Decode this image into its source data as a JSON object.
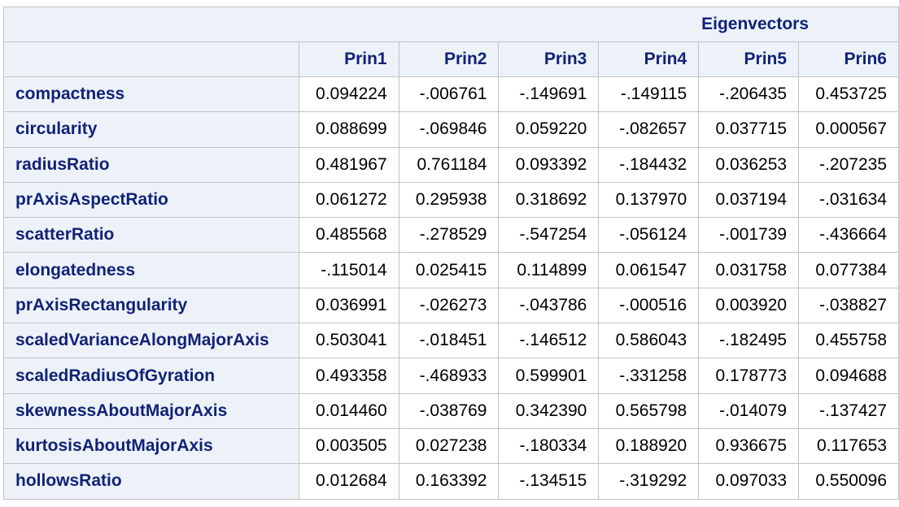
{
  "table": {
    "spanning_header": "Eigenvectors",
    "columns": [
      "Prin1",
      "Prin2",
      "Prin3",
      "Prin4",
      "Prin5",
      "Prin6"
    ],
    "rows": [
      {
        "label": "compactness",
        "values": [
          "0.094224",
          "-.006761",
          "-.149691",
          "-.149115",
          "-.206435",
          "0.453725"
        ]
      },
      {
        "label": "circularity",
        "values": [
          "0.088699",
          "-.069846",
          "0.059220",
          "-.082657",
          "0.037715",
          "0.000567"
        ]
      },
      {
        "label": "radiusRatio",
        "values": [
          "0.481967",
          "0.761184",
          "0.093392",
          "-.184432",
          "0.036253",
          "-.207235"
        ]
      },
      {
        "label": "prAxisAspectRatio",
        "values": [
          "0.061272",
          "0.295938",
          "0.318692",
          "0.137970",
          "0.037194",
          "-.031634"
        ]
      },
      {
        "label": "scatterRatio",
        "values": [
          "0.485568",
          "-.278529",
          "-.547254",
          "-.056124",
          "-.001739",
          "-.436664"
        ]
      },
      {
        "label": "elongatedness",
        "values": [
          "-.115014",
          "0.025415",
          "0.114899",
          "0.061547",
          "0.031758",
          "0.077384"
        ]
      },
      {
        "label": "prAxisRectangularity",
        "values": [
          "0.036991",
          "-.026273",
          "-.043786",
          "-.000516",
          "0.003920",
          "-.038827"
        ]
      },
      {
        "label": "scaledVarianceAlongMajorAxis",
        "values": [
          "0.503041",
          "-.018451",
          "-.146512",
          "0.586043",
          "-.182495",
          "0.455758"
        ]
      },
      {
        "label": "scaledRadiusOfGyration",
        "values": [
          "0.493358",
          "-.468933",
          "0.599901",
          "-.331258",
          "0.178773",
          "0.094688"
        ]
      },
      {
        "label": "skewnessAboutMajorAxis",
        "values": [
          "0.014460",
          "-.038769",
          "0.342390",
          "0.565798",
          "-.014079",
          "-.137427"
        ]
      },
      {
        "label": "kurtosisAboutMajorAxis",
        "values": [
          "0.003505",
          "0.027238",
          "-.180334",
          "0.188920",
          "0.936675",
          "0.117653"
        ]
      },
      {
        "label": "hollowsRatio",
        "values": [
          "0.012684",
          "0.163392",
          "-.134515",
          "-.319292",
          "0.097033",
          "0.550096"
        ]
      }
    ]
  },
  "colors": {
    "header_text": "#112277",
    "header_bg": "#edf2f9",
    "border": "#c2c2c2",
    "cell_bg": "#ffffff"
  }
}
